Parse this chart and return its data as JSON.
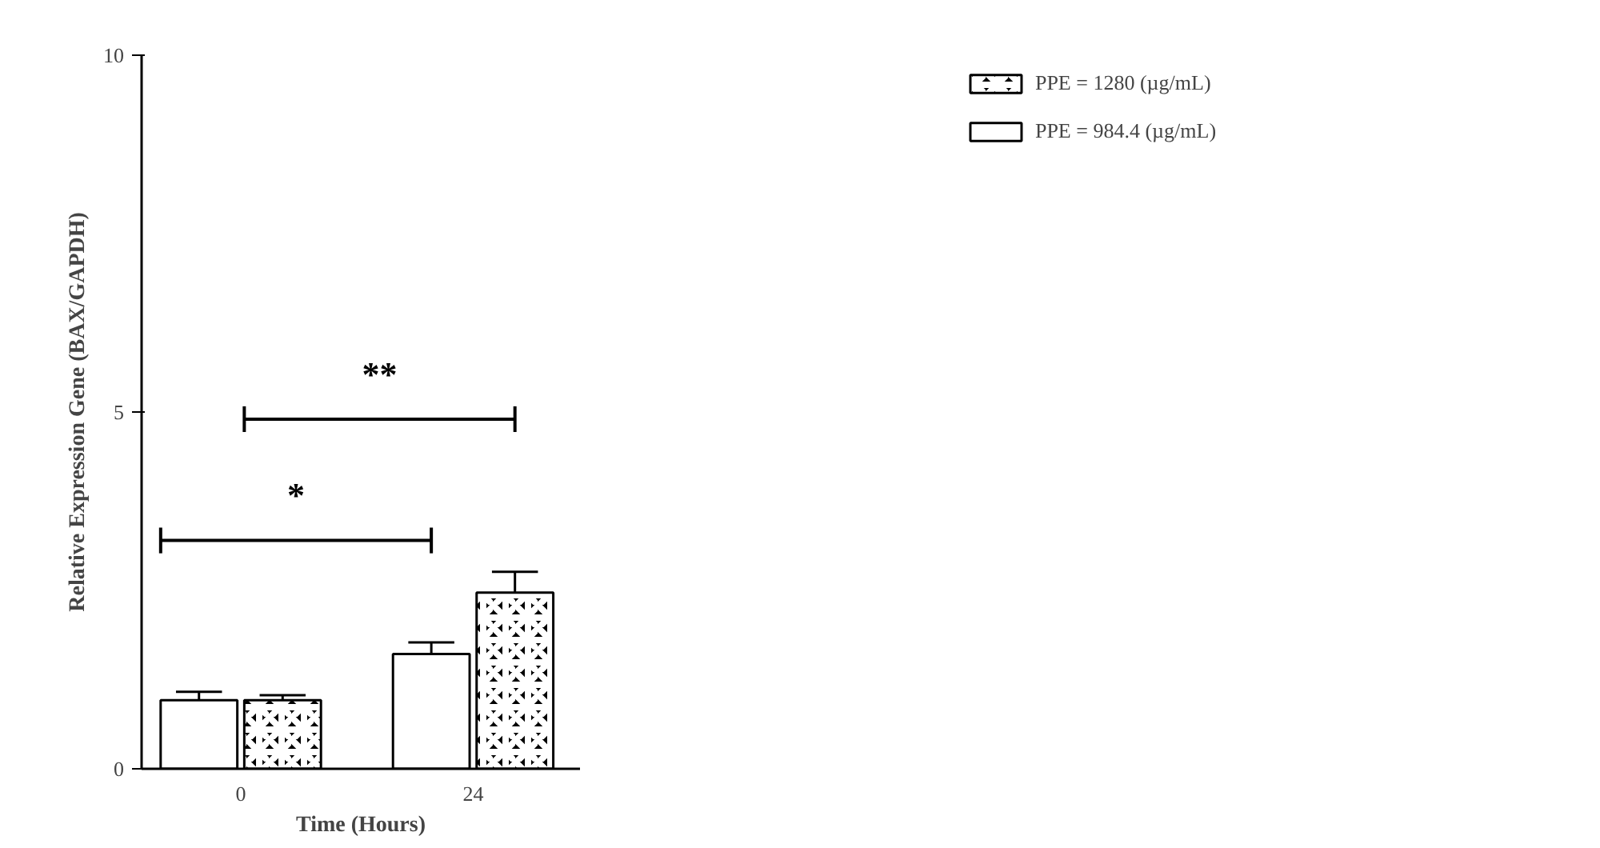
{
  "chart_data": {
    "type": "bar",
    "xlabel": "Time (Hours)",
    "ylabel": "Relative Expression Gene (BAX/GAPDH)",
    "categories": [
      "0",
      "24"
    ],
    "series": [
      {
        "name": "PPE = 984.4 (µg/mL)",
        "color": "#ffffff",
        "values": [
          0.96,
          1.61
        ],
        "errors": [
          0.12,
          0.16
        ]
      },
      {
        "name": "PPE = 1280 (µg/mL)",
        "color": "#000000",
        "values": [
          0.96,
          2.47
        ],
        "errors": [
          0.07,
          0.29
        ]
      }
    ],
    "ylim": [
      0,
      10
    ],
    "yticks": [
      0,
      5,
      10
    ],
    "grid": false,
    "legend": "top right",
    "annotations": [
      "*",
      "**"
    ]
  }
}
